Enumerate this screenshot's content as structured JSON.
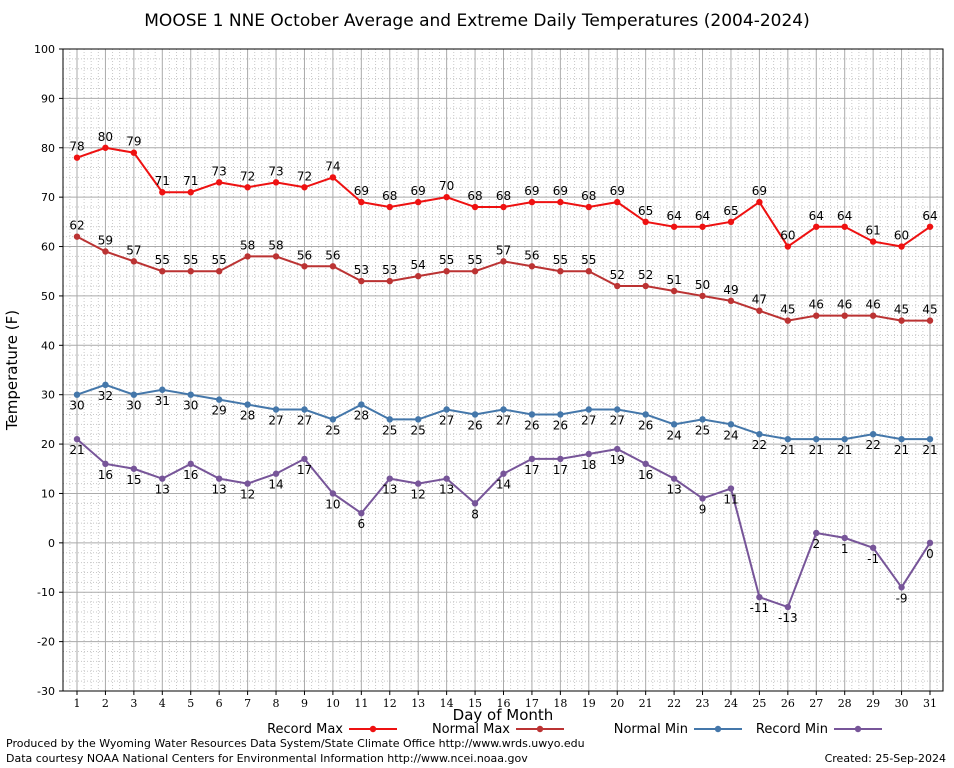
{
  "chart_data": {
    "type": "line",
    "title": "MOOSE 1 NNE October Average and Extreme Daily Temperatures (2004-2024)",
    "xlabel": "Day of Month",
    "ylabel": "Temperature (F)",
    "xlim": [
      1,
      31
    ],
    "ylim": [
      -30,
      100
    ],
    "ytick_step": 10,
    "grid": true,
    "legend_position": "bottom",
    "x": [
      1,
      2,
      3,
      4,
      5,
      6,
      7,
      8,
      9,
      10,
      11,
      12,
      13,
      14,
      15,
      16,
      17,
      18,
      19,
      20,
      21,
      22,
      23,
      24,
      25,
      26,
      27,
      28,
      29,
      30,
      31
    ],
    "series": [
      {
        "name": "Record Max",
        "color": "#ee1111",
        "label_position": "above",
        "values": [
          78,
          80,
          79,
          71,
          71,
          73,
          72,
          73,
          72,
          74,
          69,
          68,
          69,
          70,
          68,
          68,
          69,
          69,
          68,
          69,
          65,
          64,
          64,
          65,
          69,
          60,
          64,
          64,
          61,
          60,
          64
        ]
      },
      {
        "name": "Normal Max",
        "color": "#bb3333",
        "label_position": "above",
        "values": [
          62,
          59,
          57,
          55,
          55,
          55,
          58,
          58,
          56,
          56,
          53,
          53,
          54,
          55,
          55,
          57,
          56,
          55,
          55,
          52,
          52,
          51,
          50,
          49,
          47,
          45,
          46,
          46,
          46,
          45,
          45
        ]
      },
      {
        "name": "Normal Min",
        "color": "#4477aa",
        "label_position": "below",
        "values": [
          30,
          32,
          30,
          31,
          30,
          29,
          28,
          27,
          27,
          25,
          28,
          25,
          25,
          27,
          26,
          27,
          26,
          26,
          27,
          27,
          26,
          24,
          25,
          24,
          22,
          21,
          21,
          21,
          22,
          21,
          21
        ]
      },
      {
        "name": "Record Min",
        "color": "#775599",
        "label_position": "below",
        "values": [
          21,
          16,
          15,
          13,
          16,
          13,
          12,
          14,
          17,
          10,
          6,
          13,
          12,
          13,
          8,
          14,
          17,
          17,
          18,
          19,
          16,
          13,
          9,
          11,
          -11,
          -13,
          2,
          1,
          -1,
          -9,
          0
        ]
      }
    ]
  },
  "footer": {
    "produced_by": "Produced by the Wyoming Water Resources Data System/State Climate Office http://www.wrds.uwyo.edu",
    "courtesy": "Data courtesy NOAA National Centers for Environmental Information http://www.ncei.noaa.gov",
    "created": "Created:  25-Sep-2024"
  }
}
